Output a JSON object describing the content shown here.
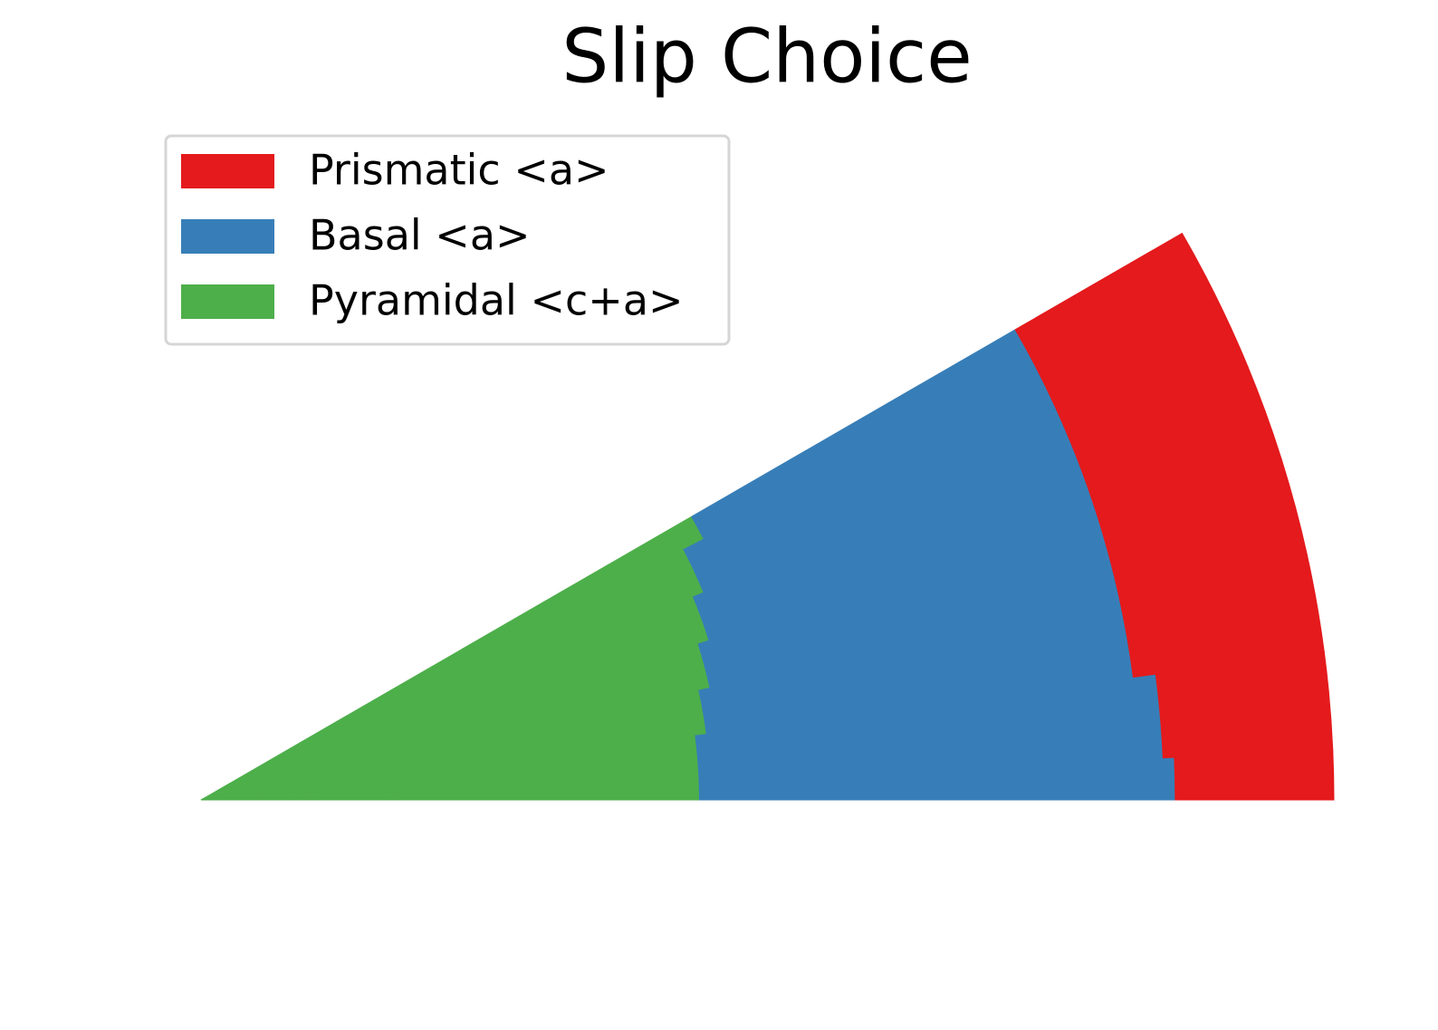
{
  "chart_data": {
    "type": "radial-stack",
    "title": "Slip Choice",
    "x": [
      0,
      5,
      10,
      15,
      20,
      25,
      30
    ],
    "xlim": [
      0,
      30
    ],
    "ylim": [
      0,
      1
    ],
    "legend": "upper left",
    "series": [
      {
        "name": "Prismatic <a>",
        "color": "#e41a1c",
        "values": [
          0.14,
          0.15,
          0.17,
          0.17,
          0.17,
          0.17,
          0.17
        ]
      },
      {
        "name": "Basal <a>",
        "color": "#377eb8",
        "values": [
          0.42,
          0.41,
          0.38,
          0.37,
          0.36,
          0.35,
          0.33
        ]
      },
      {
        "name": "Pyramidal <c+a>",
        "color": "#4daf4a",
        "values": [
          0.44,
          0.44,
          0.45,
          0.46,
          0.47,
          0.48,
          0.5
        ]
      }
    ]
  }
}
